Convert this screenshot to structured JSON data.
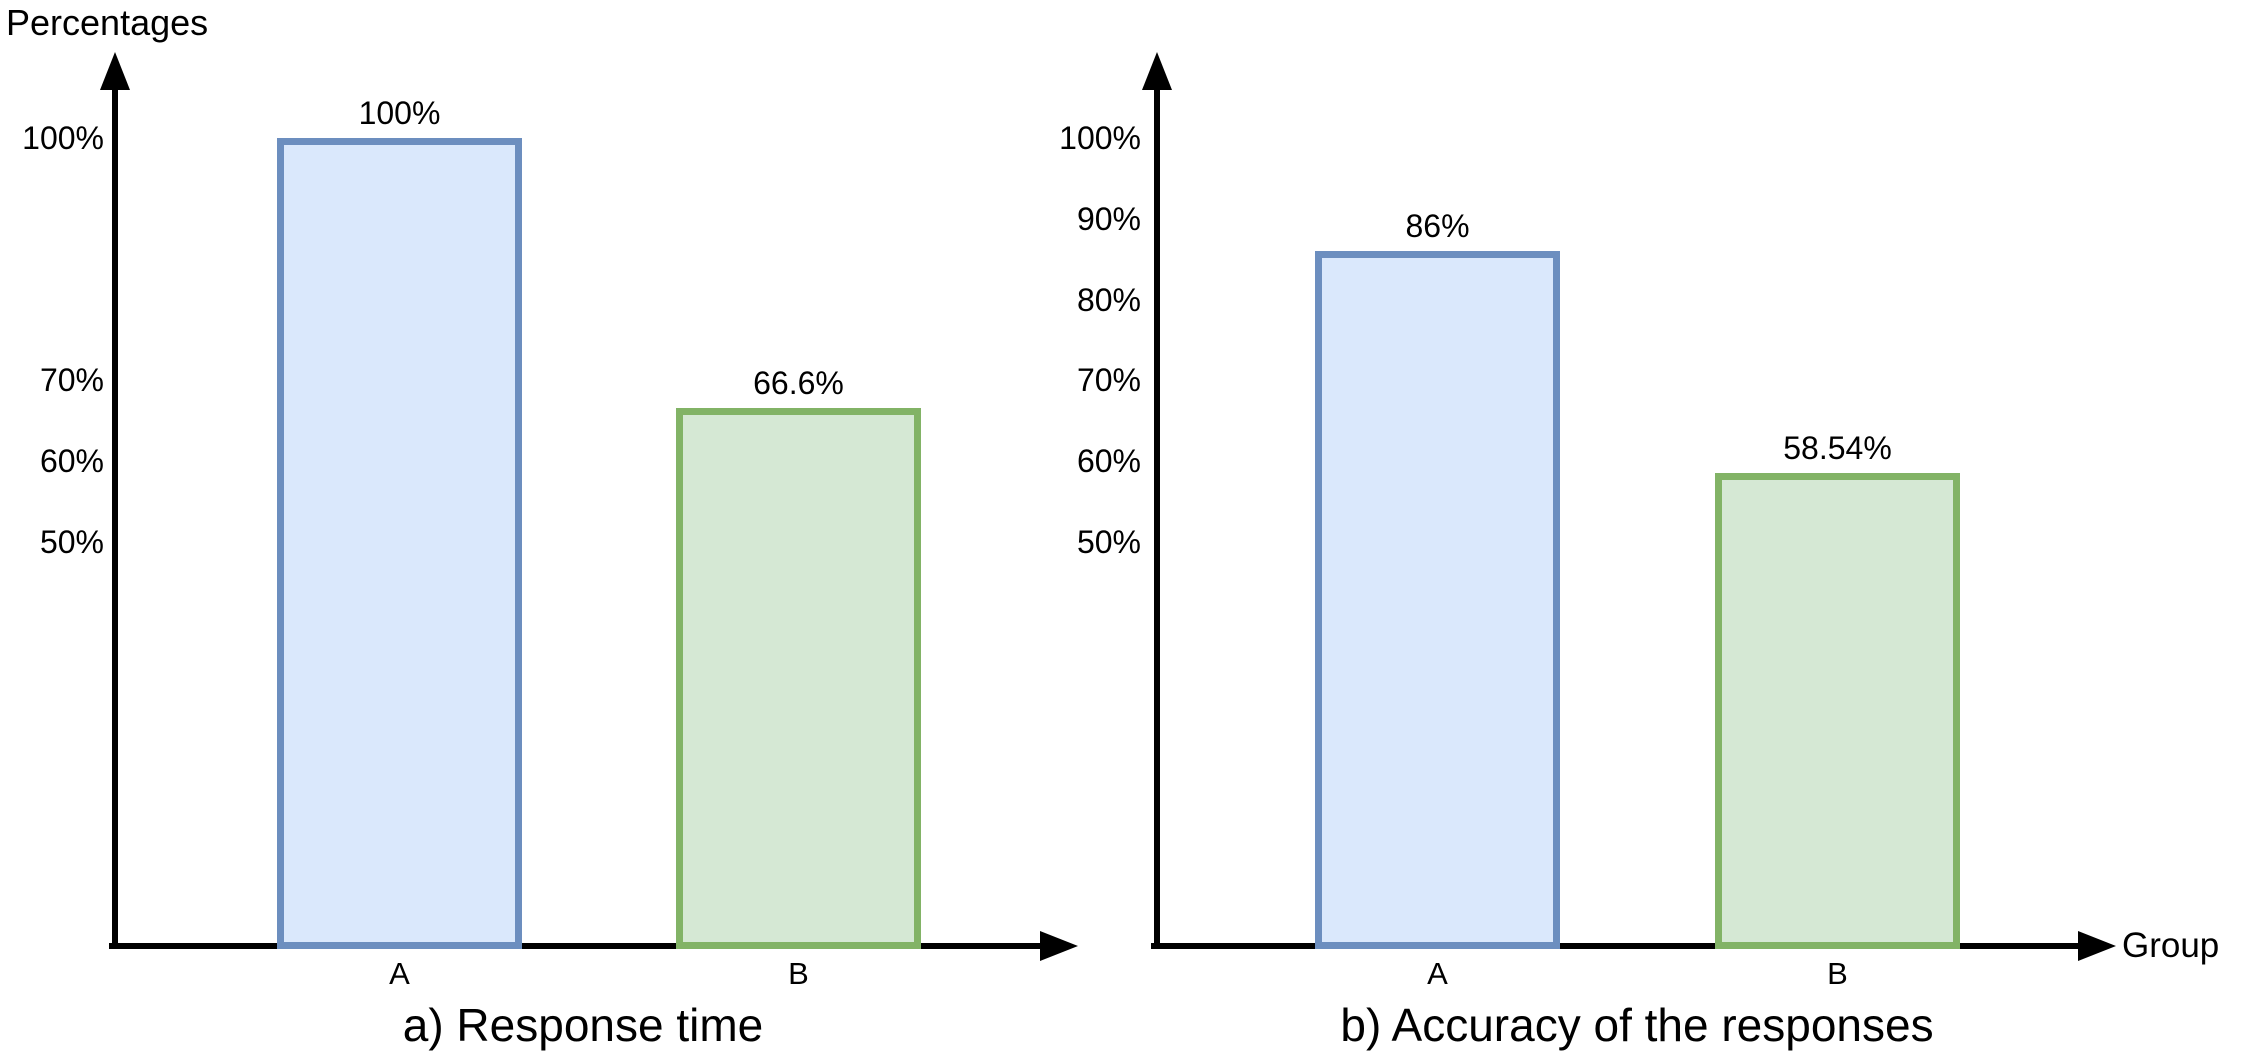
{
  "figure": {
    "y_axis_title": "Percentages",
    "x_axis_title": "Group"
  },
  "colors": {
    "axis": "#000000",
    "text": "#000000",
    "blue_fill": "#dae8fc",
    "blue_stroke": "#6c8ebf",
    "green_fill": "#d5e8d4",
    "green_stroke": "#82b366"
  },
  "chart_data": [
    {
      "type": "bar",
      "title": "a) Response time",
      "ylabel": "Percentages",
      "xlabel": "",
      "categories": [
        "A",
        "B"
      ],
      "values": [
        100,
        66.6
      ],
      "value_labels": [
        "100%",
        "66.6%"
      ],
      "yticks": [
        100,
        70,
        60,
        50
      ],
      "ytick_labels": [
        "100%",
        "70%",
        "60%",
        "50%"
      ],
      "ylim": [
        0,
        110
      ],
      "grid": false,
      "legend": "none",
      "bar_styles": [
        {
          "fill": "#dae8fc",
          "stroke": "#6c8ebf"
        },
        {
          "fill": "#d5e8d4",
          "stroke": "#82b366"
        }
      ]
    },
    {
      "type": "bar",
      "title": "b) Accuracy of the responses",
      "ylabel": "Percentages",
      "xlabel": "Group",
      "categories": [
        "A",
        "B"
      ],
      "values": [
        86,
        58.54
      ],
      "value_labels": [
        "86%",
        "58.54%"
      ],
      "yticks": [
        100,
        90,
        80,
        70,
        60,
        50
      ],
      "ytick_labels": [
        "100%",
        "90%",
        "80%",
        "70%",
        "60%",
        "50%"
      ],
      "ylim": [
        0,
        110
      ],
      "grid": false,
      "legend": "none",
      "bar_styles": [
        {
          "fill": "#dae8fc",
          "stroke": "#6c8ebf"
        },
        {
          "fill": "#d5e8d4",
          "stroke": "#82b366"
        }
      ]
    }
  ]
}
